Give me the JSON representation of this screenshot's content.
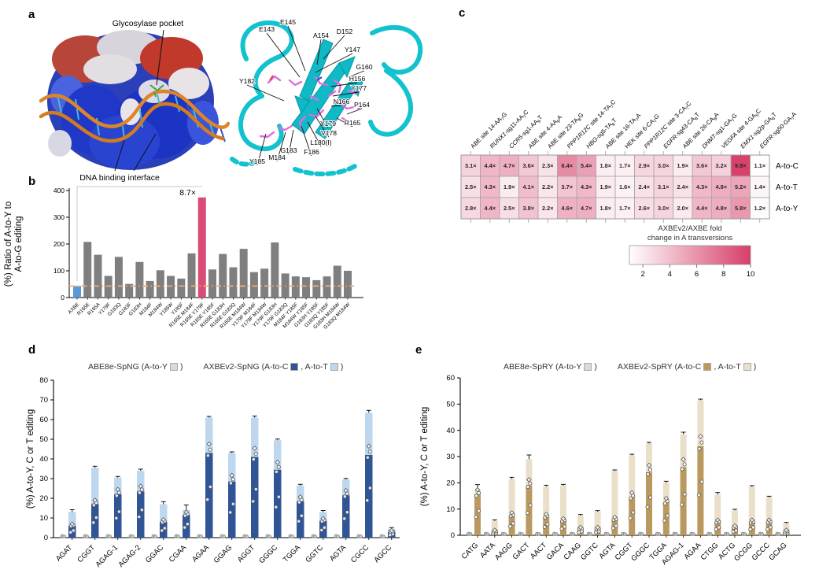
{
  "panels": {
    "a": {
      "label": "a",
      "glycosylase_label": "Glycosylase pocket",
      "dna_label": "DNA binding interface",
      "residues": [
        "E143",
        "E145",
        "A154",
        "D152",
        "Y147",
        "G160",
        "H156",
        "Y177",
        "N166",
        "P164",
        "R165",
        "Y179",
        "V178",
        "L180(I)",
        "F186",
        "G183",
        "M184",
        "Y185",
        "Y182"
      ]
    },
    "b": {
      "label": "b"
    },
    "c": {
      "label": "c"
    },
    "d": {
      "label": "d"
    },
    "e": {
      "label": "e"
    }
  },
  "chart_data": [
    {
      "panel": "b",
      "type": "bar",
      "ylabel_lines": [
        "(%) Ratio of A-to-Y to",
        "A-to-G editing"
      ],
      "ylim": [
        0,
        400
      ],
      "yticks": [
        0,
        100,
        200,
        300,
        400
      ],
      "categories": [
        "AXBE",
        "R165E",
        "R165A",
        "Y179F",
        "G183Q",
        "G183F",
        "G183H",
        "M184F",
        "M184W",
        "Y185W",
        "Y185F",
        "R165E M184F",
        "R165E Y179F",
        "R165E Y185F",
        "R165E G183H",
        "R165E G183Q",
        "R165E M184W",
        "Y179F M184F",
        "Y179F M184W",
        "Y179F G183H",
        "Y179F G183Q",
        "M184F Y185F",
        "M184W Y185F",
        "G183H Y185F",
        "G183Q Y185F",
        "G183H M184W",
        "G183Q M184W"
      ],
      "values": [
        43,
        208,
        160,
        81,
        152,
        51,
        133,
        62,
        102,
        81,
        71,
        165,
        374,
        105,
        163,
        113,
        182,
        95,
        108,
        206,
        90,
        79,
        76,
        65,
        79,
        119,
        100
      ],
      "bar_colors": {
        "default": "#7F7F7F",
        "axbe": "#5B9BD5",
        "highlight": "#D84C75"
      },
      "highlight_index": 12,
      "highlight_annotation": "8.7×",
      "baseline": {
        "value": 43,
        "color": "#F2AC74"
      }
    },
    {
      "panel": "c",
      "type": "heatmap",
      "rows": [
        "A-to-C",
        "A-to-T",
        "A-to-Y"
      ],
      "columns_tokens": [
        [
          {
            "t": "ABE site 14-AA"
          },
          {
            "t": "7",
            "sub": 1
          },
          {
            "t": "G"
          }
        ],
        [
          {
            "t": "RUNX1",
            "i": 1
          },
          {
            "t": "-sg11-AA"
          },
          {
            "t": "7",
            "sub": 1
          },
          {
            "t": "C"
          }
        ],
        [
          {
            "t": "CCR5",
            "i": 1
          },
          {
            "t": "-sg1-AA"
          },
          {
            "t": "6",
            "sub": 1
          },
          {
            "t": "T"
          }
        ],
        [
          {
            "t": "ABE site 4-AA"
          },
          {
            "t": "6",
            "sub": 1
          },
          {
            "t": "A"
          }
        ],
        [
          {
            "t": "ABE site 23-TA"
          },
          {
            "t": "8",
            "sub": 1
          },
          {
            "t": "G"
          }
        ],
        [
          {
            "t": "PPP1R12C",
            "i": 1
          },
          {
            "t": " site 14-TA"
          },
          {
            "t": "7",
            "sub": 1
          },
          {
            "t": "C"
          }
        ],
        [
          {
            "t": "HBG",
            "i": 1
          },
          {
            "t": "-sg5-TA"
          },
          {
            "t": "8",
            "sub": 1
          },
          {
            "t": "T"
          }
        ],
        [
          {
            "t": "ABE site 16-TA"
          },
          {
            "t": "7",
            "sub": 1
          },
          {
            "t": "A"
          }
        ],
        [
          {
            "t": "HEK site 6-CA"
          },
          {
            "t": "7",
            "sub": 1
          },
          {
            "t": "G"
          }
        ],
        [
          {
            "t": "PPP1R12C",
            "i": 1
          },
          {
            "t": " site 3-CA"
          },
          {
            "t": "7",
            "sub": 1
          },
          {
            "t": "C"
          }
        ],
        [
          {
            "t": "EGFR",
            "i": 1
          },
          {
            "t": "-sg43-CA"
          },
          {
            "t": "8",
            "sub": 1
          },
          {
            "t": "T"
          }
        ],
        [
          {
            "t": "ABE site 26-CA"
          },
          {
            "t": "8",
            "sub": 1
          },
          {
            "t": "A"
          }
        ],
        [
          {
            "t": "DNMT",
            "i": 1
          },
          {
            "t": "-sg1-GA"
          },
          {
            "t": "7",
            "sub": 1
          },
          {
            "t": "G"
          }
        ],
        [
          {
            "t": "VEGFA",
            "i": 1
          },
          {
            "t": " site 4-GA"
          },
          {
            "t": "5",
            "sub": 1
          },
          {
            "t": "C"
          }
        ],
        [
          {
            "t": "EMX1",
            "i": 1
          },
          {
            "t": "-sg2p-GA"
          },
          {
            "t": "8",
            "sub": 1
          },
          {
            "t": "T"
          }
        ],
        [
          {
            "t": "EGFR",
            "i": 1
          },
          {
            "t": "-sg50-GA"
          },
          {
            "t": "7",
            "sub": 1
          },
          {
            "t": "A"
          }
        ]
      ],
      "values": [
        [
          3.1,
          4.4,
          4.7,
          3.6,
          2.3,
          6.4,
          5.4,
          1.8,
          1.7,
          2.9,
          3.0,
          1.9,
          3.6,
          3.2,
          9.8,
          1.1
        ],
        [
          2.5,
          4.3,
          1.9,
          4.1,
          2.2,
          3.7,
          4.3,
          1.9,
          1.6,
          2.4,
          3.1,
          2.4,
          4.3,
          4.8,
          5.2,
          1.4
        ],
        [
          2.8,
          4.4,
          2.5,
          3.8,
          2.2,
          4.6,
          4.7,
          1.8,
          1.7,
          2.6,
          3.0,
          2.0,
          4.4,
          4.8,
          5.8,
          1.2
        ]
      ],
      "value_suffix": "×",
      "colorbar": {
        "title_lines": [
          "AXBEv2/AXBE fold",
          "change in A transversions"
        ],
        "ticks": [
          2,
          4,
          6,
          8,
          10
        ],
        "range": [
          1,
          10
        ],
        "min_color": "#FFFFFF",
        "max_color": "#D63E68"
      }
    },
    {
      "panel": "d",
      "type": "stacked-bar",
      "legend_tokens": [
        {
          "t": "ABE8e-SpNG (A-to-Y"
        },
        {
          "s": "#D9D9D9"
        },
        {
          "t": ")"
        },
        {
          "gap": 26
        },
        {
          "t": "AXBEv2-SpNG (A-to-C"
        },
        {
          "s": "#2F5597"
        },
        {
          "t": ", A-to-T"
        },
        {
          "s": "#BDD7EE"
        },
        {
          "t": ")"
        }
      ],
      "ylabel": "(%) A-to-Y, C or T editing",
      "ylim": [
        0,
        80
      ],
      "ytick_step": 10,
      "categories": [
        "AGAT",
        "CGGT",
        "AGAG-1",
        "AGAG-2",
        "GGAC",
        "CGAA",
        "AGAA",
        "GGAG",
        "AGGT",
        "GGGC",
        "TGGA",
        "GGTC",
        "AGTA",
        "CGCC",
        "AGCC"
      ],
      "series": [
        {
          "name": "ABE8e-SpNG A-to-Y",
          "color": "#D9D9D9",
          "values": [
            0.5,
            0.5,
            0.5,
            0.5,
            0.5,
            0.5,
            0.5,
            0.5,
            1.0,
            0.5,
            0.5,
            0.5,
            0.5,
            0.5,
            0.5
          ]
        },
        {
          "name": "AXBEv2-SpNG A-to-C",
          "color": "#2F5597",
          "values": [
            6,
            17,
            22,
            23.5,
            8,
            11.5,
            43,
            28.5,
            41,
            34.5,
            18.5,
            8.5,
            21.5,
            42,
            3
          ]
        },
        {
          "name": "AXBEv2-SpNG A-to-T",
          "color": "#BDD7EE",
          "values": [
            7,
            18.5,
            8.5,
            10.5,
            9,
            2.5,
            18,
            14.5,
            20,
            15,
            8,
            4.5,
            8,
            21.5,
            1.5
          ]
        }
      ],
      "error_caps": [
        1.2,
        0.8,
        0.6,
        0.8,
        1.3,
        2.6,
        0.6,
        0.6,
        0.8,
        0.6,
        0.6,
        0.8,
        0.6,
        1.2,
        0.6
      ]
    },
    {
      "panel": "e",
      "type": "stacked-bar",
      "legend_tokens": [
        {
          "t": "ABE8e-SpRY (A-to-Y"
        },
        {
          "s": "#D9D9D9"
        },
        {
          "t": ")"
        },
        {
          "gap": 26
        },
        {
          "t": "AXBEv2-SpRY (A-to-C"
        },
        {
          "s": "#BA9960"
        },
        {
          "t": ", A-to-T"
        },
        {
          "s": "#EAE0C9"
        },
        {
          "t": ")"
        }
      ],
      "ylabel": "(%) A-to-Y, C or T editing",
      "ylim": [
        0,
        60
      ],
      "ytick_step": 10,
      "categories": [
        "CATG",
        "AATA",
        "AAGG",
        "GACT",
        "AACT",
        "GACA",
        "CAAG",
        "GGTC",
        "AGTA",
        "CGGT",
        "GGGC",
        "TGGA",
        "AGAG-1",
        "AGAA",
        "CTGG",
        "ACTG",
        "GCGG",
        "GCCC",
        "GCAG"
      ],
      "series": [
        {
          "name": "ABE8e-SpRY A-to-Y",
          "color": "#D9D9D9",
          "values": [
            0.3,
            0.3,
            0.3,
            0.3,
            0.3,
            0.3,
            0.3,
            0.3,
            0.3,
            0.3,
            0.3,
            0.3,
            0.3,
            0.3,
            0.3,
            0.3,
            0.3,
            0.3,
            0.3
          ]
        },
        {
          "name": "AXBEv2-SpRY A-to-C",
          "color": "#BA9960",
          "values": [
            15.5,
            1.5,
            7.5,
            19,
            7,
            5.5,
            2.5,
            2.5,
            6,
            14.5,
            24,
            12.5,
            26,
            34,
            5,
            3,
            5,
            5,
            1.5
          ]
        },
        {
          "name": "AXBEv2-SpRY A-to-T",
          "color": "#EAE0C9",
          "values": [
            2,
            4,
            14,
            10,
            11.5,
            13.5,
            5,
            6.5,
            18.5,
            16,
            11,
            7.5,
            12.5,
            17.5,
            10.5,
            6.5,
            13.5,
            9.5,
            3
          ]
        }
      ],
      "error_caps": [
        1.8,
        0.4,
        0.6,
        1.6,
        0.6,
        0.4,
        0.4,
        0.4,
        0.4,
        0.4,
        0.4,
        0.6,
        0.8,
        0.4,
        0.8,
        0.4,
        0.4,
        0.4,
        0.4
      ]
    }
  ]
}
